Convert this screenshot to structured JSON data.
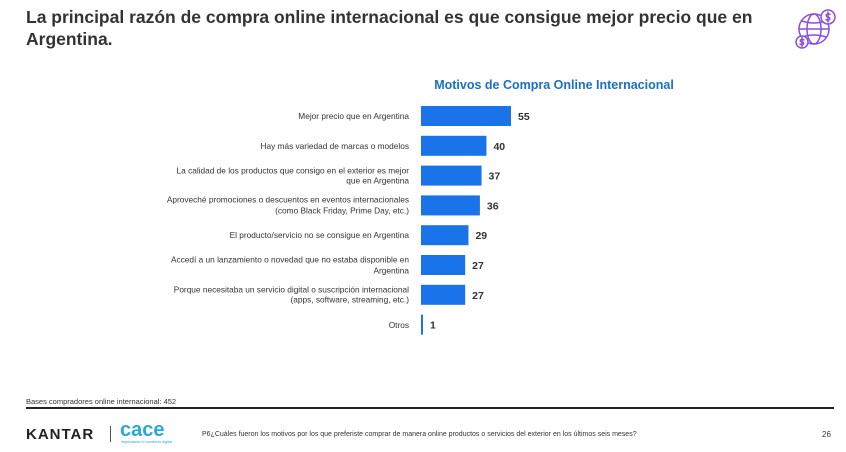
{
  "headline": "La principal razón de compra online internacional es que consigue mejor precio que en Argentina.",
  "colors": {
    "bar": "#1a73e8",
    "title": "#1a6fc9",
    "icon": "#8a4fe0"
  },
  "icon": "globe-money-icon",
  "chart_data": {
    "type": "bar",
    "orientation": "horizontal",
    "title": "Motivos de Compra Online Internacional",
    "categories": [
      [
        "Mejor precio que en Argentina"
      ],
      [
        "Hay más variedad de marcas o modelos"
      ],
      [
        "La calidad de los productos que consigo en el exterior es mejor",
        "que en Argentina"
      ],
      [
        "Aproveché promociones o descuentos en eventos internacionales",
        "(como Black Friday, Prime Day, etc.)"
      ],
      [
        "El producto/servicio no se consigue en Argentina"
      ],
      [
        "Accedí a un lanzamiento o novedad que no estaba disponible en",
        "Argentina"
      ],
      [
        "Porque necesitaba un servicio digital o suscripción internacional",
        "(apps, software, streaming, etc.)"
      ],
      [
        "Otros"
      ]
    ],
    "values": [
      55,
      40,
      37,
      36,
      29,
      27,
      27,
      1
    ],
    "data_labels": [
      "55",
      "40",
      "37",
      "36",
      "29",
      "27",
      "27",
      "1"
    ],
    "xlim": [
      0,
      55
    ],
    "grid": false,
    "legend": "none"
  },
  "footer": {
    "base_note": "Bases compradores online internacional: 452",
    "brand": "KANTAR",
    "partner": "cace",
    "partner_tagline": "impulsando el comercio digital",
    "question": "P6¿Cuáles fueron los motivos por los que preferiste comprar de manera online productos o servicios del exterior en los últimos seis meses?",
    "page": "26"
  }
}
